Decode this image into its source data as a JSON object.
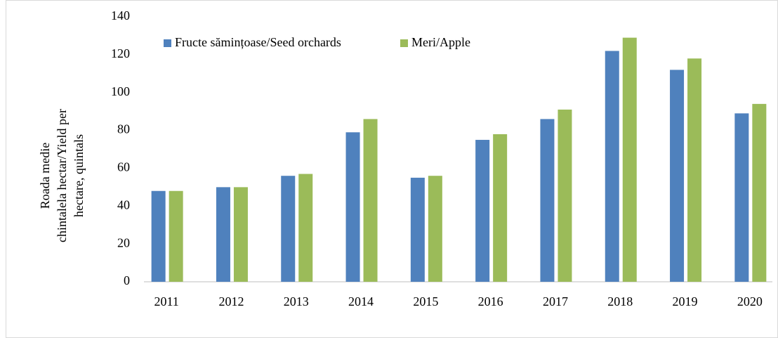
{
  "chart_data": {
    "type": "bar",
    "ylabel": [
      "Roada medie",
      "chintalela hectar/Yield per",
      "hectare, quintals"
    ],
    "categories": [
      "2011",
      "2012",
      "2013",
      "2014",
      "2015",
      "2016",
      "2017",
      "2018",
      "2019",
      "2020"
    ],
    "series": [
      {
        "name": "Fructe sămințoase/Seed orchards",
        "color": "#4f81bd",
        "values": [
          48,
          50,
          56,
          79,
          55,
          75,
          86,
          122,
          112,
          89
        ]
      },
      {
        "name": "Meri/Apple",
        "color": "#9bbb59",
        "values": [
          48,
          50,
          57,
          86,
          56,
          78,
          91,
          129,
          118,
          94
        ]
      }
    ],
    "ylim": [
      0,
      140
    ],
    "yticks": [
      0,
      20,
      40,
      60,
      80,
      100,
      120,
      140
    ],
    "grid": false,
    "legend": "top"
  }
}
